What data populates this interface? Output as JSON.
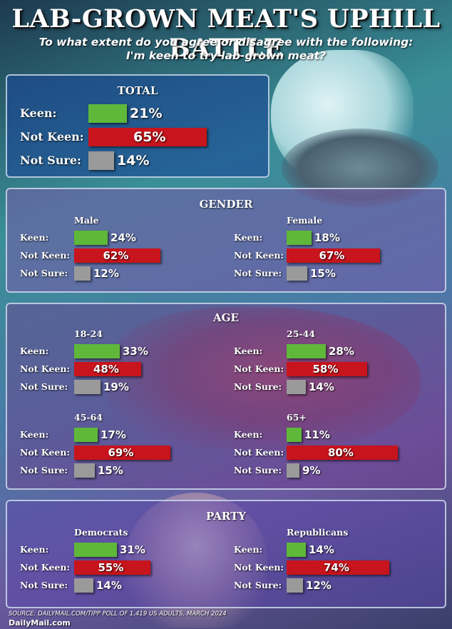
{
  "header": {
    "title": "LAB-GROWN MEAT'S UPHILL BATTLE",
    "subtitle_line1": "To what extent do you agree or disagree with the following:",
    "subtitle_line2": "I'm keen to try lab-grown meat?"
  },
  "colors": {
    "keen": "#5fb83a",
    "not_keen": "#c8141c",
    "not_sure": "#9a9a9a"
  },
  "footer": {
    "source": "SOURCE: DAILYMAIL.COM/TIPP POLL OF 1,419 US ADULTS, MARCH 2024",
    "brand": "DailyMail.com"
  },
  "chart_data": {
    "type": "bar",
    "orientation": "horizontal",
    "categories": [
      "Keen:",
      "Not Keen:",
      "Not Sure:"
    ],
    "unit": "%",
    "sections": [
      {
        "title": "TOTAL",
        "groups": [
          {
            "name": "",
            "values": [
              21,
              65,
              14
            ],
            "labels": [
              "21%",
              "65%",
              "14%"
            ]
          }
        ]
      },
      {
        "title": "GENDER",
        "groups": [
          {
            "name": "Male",
            "values": [
              24,
              62,
              12
            ],
            "labels": [
              "24%",
              "62%",
              "12%"
            ]
          },
          {
            "name": "Female",
            "values": [
              18,
              67,
              15
            ],
            "labels": [
              "18%",
              "67%",
              "15%"
            ]
          }
        ]
      },
      {
        "title": "AGE",
        "groups": [
          {
            "name": "18-24",
            "values": [
              33,
              48,
              19
            ],
            "labels": [
              "33%",
              "48%",
              "19%"
            ]
          },
          {
            "name": "25-44",
            "values": [
              28,
              58,
              14
            ],
            "labels": [
              "28%",
              "58%",
              "14%"
            ]
          },
          {
            "name": "45-64",
            "values": [
              17,
              69,
              15
            ],
            "labels": [
              "17%",
              "69%",
              "15%"
            ]
          },
          {
            "name": "65+",
            "values": [
              11,
              80,
              9
            ],
            "labels": [
              "11%",
              "80%",
              "9%"
            ]
          }
        ]
      },
      {
        "title": "PARTY",
        "groups": [
          {
            "name": "Democrats",
            "values": [
              31,
              55,
              14
            ],
            "labels": [
              "31%",
              "55%",
              "14%"
            ]
          },
          {
            "name": "Republicans",
            "values": [
              14,
              74,
              12
            ],
            "labels": [
              "14%",
              "74%",
              "12%"
            ]
          }
        ]
      }
    ]
  }
}
